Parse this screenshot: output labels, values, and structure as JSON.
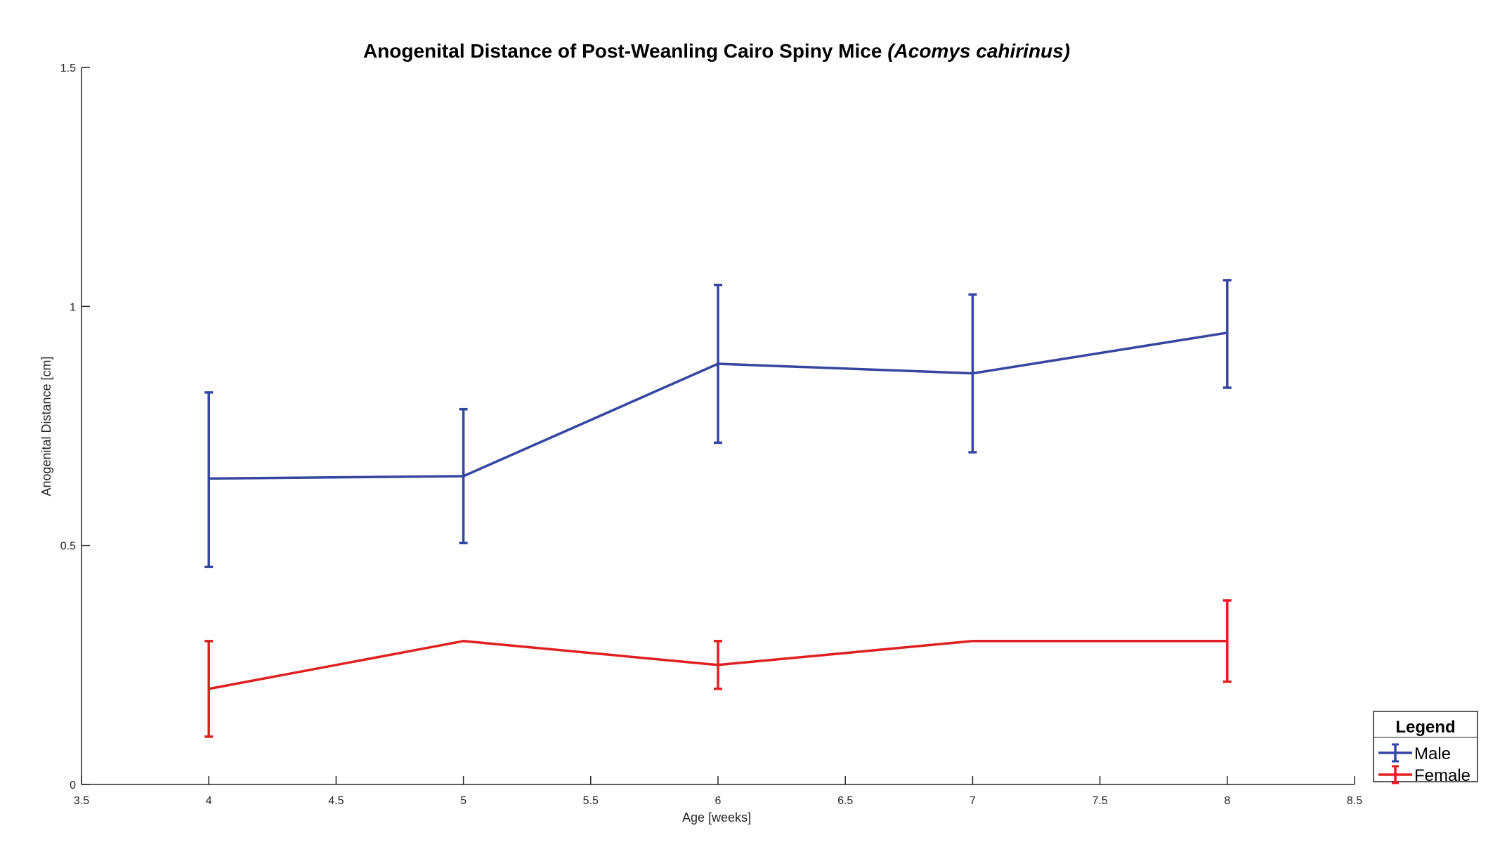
{
  "chart_data": {
    "type": "line",
    "title": "Anogenital Distance of Post-Weanling Cairo Spiny Mice",
    "title_italic": "(Acomys cahirinus)",
    "xlabel": "Age [weeks]",
    "ylabel": "Anogenital Distance [cm]",
    "xlim": [
      3.5,
      8.5
    ],
    "ylim": [
      0,
      1.5
    ],
    "xticks": [
      3.5,
      4,
      4.5,
      5,
      5.5,
      6,
      6.5,
      7,
      7.5,
      8,
      8.5
    ],
    "xtick_labels": [
      "3.5",
      "4",
      "4.5",
      "5",
      "5.5",
      "6",
      "6.5",
      "7",
      "7.5",
      "8",
      "8.5"
    ],
    "yticks": [
      0,
      0.5,
      1,
      1.5
    ],
    "ytick_labels": [
      "0",
      "0.5",
      "1",
      "1.5"
    ],
    "grid": false,
    "legend": {
      "title": "Legend",
      "position": "bottom-right"
    },
    "series": [
      {
        "name": "Male",
        "color": "#3546a0",
        "x": [
          4,
          5,
          6,
          7,
          8
        ],
        "y": [
          0.64,
          0.645,
          0.88,
          0.86,
          0.945
        ],
        "err_low": [
          0.455,
          0.505,
          0.715,
          0.695,
          0.83
        ],
        "err_high": [
          0.82,
          0.785,
          1.045,
          1.025,
          1.055
        ]
      },
      {
        "name": "Female",
        "color": "#e02020",
        "x": [
          4,
          5,
          6,
          7,
          8
        ],
        "y": [
          0.2,
          0.3,
          0.25,
          0.3,
          0.3
        ],
        "err_low": [
          0.1,
          0.3,
          0.2,
          0.3,
          0.215
        ],
        "err_high": [
          0.3,
          0.3,
          0.3,
          0.3,
          0.385
        ]
      }
    ]
  }
}
